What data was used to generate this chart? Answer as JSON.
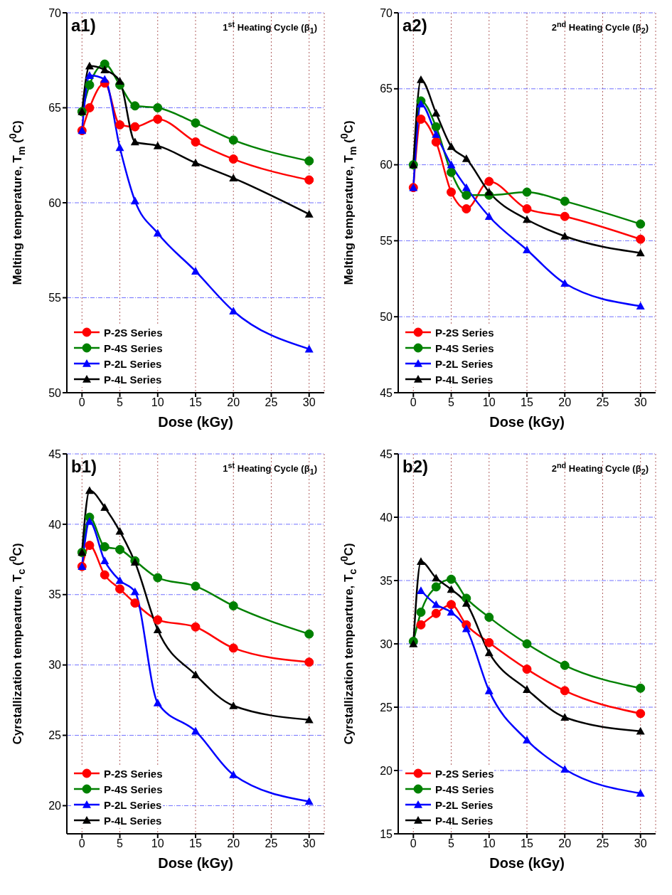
{
  "chart_data": [
    {
      "type": "line",
      "title": "a1)",
      "subtitle": "1$^{st}$ Heating Cycle (β$_{1}$)",
      "xlabel": "Dose (kGy)",
      "ylabel": "Melting temperature, T$_{m}$ ($^{0}$C)",
      "x": [
        0,
        1,
        3,
        5,
        7,
        10,
        15,
        20,
        30
      ],
      "xlim": [
        -2,
        32
      ],
      "xticks": [
        0,
        5,
        10,
        15,
        20,
        25,
        30
      ],
      "ylim": [
        50,
        70
      ],
      "yticks": [
        50,
        55,
        60,
        65,
        70
      ],
      "grid": true,
      "legend": "bottom left",
      "line_style": "solid",
      "series": [
        {
          "name": "P-2S Series",
          "color": "#ff0000",
          "marker": "circle",
          "values": [
            63.8,
            65.0,
            66.3,
            64.1,
            64.0,
            64.4,
            63.2,
            62.3,
            61.2
          ]
        },
        {
          "name": "P-4S Series",
          "color": "#008000",
          "marker": "circle",
          "values": [
            64.8,
            66.2,
            67.3,
            66.2,
            65.1,
            65.0,
            64.2,
            63.3,
            62.2
          ]
        },
        {
          "name": "P-2L Series",
          "color": "#0000ff",
          "marker": "triangle",
          "values": [
            63.8,
            66.7,
            66.5,
            62.9,
            60.1,
            58.4,
            56.4,
            54.3,
            52.3
          ]
        },
        {
          "name": "P-4L Series",
          "color": "#000000",
          "marker": "triangle",
          "values": [
            64.8,
            67.2,
            67.0,
            66.4,
            63.2,
            63.0,
            62.1,
            61.3,
            59.4
          ]
        }
      ]
    },
    {
      "type": "line",
      "title": "a2)",
      "subtitle": "2$^{nd}$ Heating Cycle (β$_{2}$)",
      "xlabel": "Dose (kGy)",
      "ylabel": "Melting temperature, T$_{m}$ ($^{0}$C)",
      "x": [
        0,
        1,
        3,
        5,
        7,
        10,
        15,
        20,
        30
      ],
      "xlim": [
        -2,
        32
      ],
      "xticks": [
        0,
        5,
        10,
        15,
        20,
        25,
        30
      ],
      "ylim": [
        45,
        70
      ],
      "yticks": [
        45,
        50,
        55,
        60,
        65,
        70
      ],
      "grid": true,
      "legend": "bottom left",
      "line_style": "solid",
      "series": [
        {
          "name": "P-2S Series",
          "color": "#ff0000",
          "marker": "circle",
          "values": [
            58.5,
            63.0,
            61.5,
            58.2,
            57.1,
            58.9,
            57.1,
            56.6,
            55.1
          ]
        },
        {
          "name": "P-4S Series",
          "color": "#008000",
          "marker": "circle",
          "values": [
            60.0,
            64.2,
            62.5,
            59.5,
            58.0,
            58.0,
            58.2,
            57.6,
            56.1
          ]
        },
        {
          "name": "P-2L Series",
          "color": "#0000ff",
          "marker": "triangle",
          "values": [
            58.5,
            64.0,
            62.0,
            60.0,
            58.5,
            56.6,
            54.4,
            52.2,
            50.7
          ]
        },
        {
          "name": "P-4L Series",
          "color": "#000000",
          "marker": "triangle",
          "values": [
            60.0,
            65.6,
            63.4,
            61.2,
            60.4,
            58.2,
            56.4,
            55.3,
            54.2
          ]
        }
      ]
    },
    {
      "type": "line",
      "title": "b1)",
      "subtitle": "1$^{st}$ Heating Cycle (β$_{1}$)",
      "xlabel": "Dose (kGy)",
      "ylabel": "Cyrstallization tempearture, T$_{c}$ ($^{0}$C)",
      "x": [
        0,
        1,
        3,
        5,
        7,
        10,
        15,
        20,
        30
      ],
      "xlim": [
        -2,
        32
      ],
      "xticks": [
        0,
        5,
        10,
        15,
        20,
        25,
        30
      ],
      "ylim": [
        18,
        45
      ],
      "yticks": [
        20,
        25,
        30,
        35,
        40,
        45
      ],
      "grid": true,
      "legend": "bottom left",
      "line_style": "solid",
      "series": [
        {
          "name": "P-2S Series",
          "color": "#ff0000",
          "marker": "circle",
          "values": [
            37.0,
            38.5,
            36.4,
            35.4,
            34.4,
            33.2,
            32.7,
            31.2,
            30.2
          ]
        },
        {
          "name": "P-4S Series",
          "color": "#008000",
          "marker": "circle",
          "values": [
            38.0,
            40.5,
            38.4,
            38.2,
            37.4,
            36.2,
            35.6,
            34.2,
            32.2
          ]
        },
        {
          "name": "P-2L Series",
          "color": "#0000ff",
          "marker": "triangle",
          "values": [
            37.0,
            40.2,
            37.4,
            36.0,
            35.2,
            27.3,
            25.3,
            22.2,
            20.3
          ]
        },
        {
          "name": "P-4L Series",
          "color": "#000000",
          "marker": "triangle",
          "values": [
            38.0,
            42.4,
            41.2,
            39.5,
            37.3,
            32.5,
            29.3,
            27.1,
            26.1
          ]
        }
      ]
    },
    {
      "type": "line",
      "title": "b2)",
      "subtitle": "2$^{nd}$ Heating Cycle (β$_{2}$)",
      "xlabel": "Dose (kGy)",
      "ylabel": "Cyrstallization tempearture, T$_{c}$ ($^{0}$C)",
      "x": [
        0,
        1,
        3,
        5,
        7,
        10,
        15,
        20,
        30
      ],
      "xlim": [
        -2,
        32
      ],
      "xticks": [
        0,
        5,
        10,
        15,
        20,
        25,
        30
      ],
      "ylim": [
        15,
        45
      ],
      "yticks": [
        15,
        20,
        25,
        30,
        35,
        40,
        45
      ],
      "grid": true,
      "legend": "bottom left",
      "line_style": "solid",
      "series": [
        {
          "name": "P-2S Series",
          "color": "#ff0000",
          "marker": "circle",
          "values": [
            null,
            31.5,
            32.4,
            33.1,
            31.5,
            30.1,
            28.0,
            26.3,
            24.5
          ]
        },
        {
          "name": "P-4S Series",
          "color": "#008000",
          "marker": "circle",
          "values": [
            30.2,
            32.5,
            34.5,
            35.1,
            33.6,
            32.1,
            30.0,
            28.3,
            26.5
          ]
        },
        {
          "name": "P-2L Series",
          "color": "#0000ff",
          "marker": "triangle",
          "values": [
            null,
            34.2,
            33.1,
            32.5,
            31.2,
            26.3,
            22.4,
            20.1,
            18.2
          ]
        },
        {
          "name": "P-4L Series",
          "color": "#000000",
          "marker": "triangle",
          "values": [
            30.0,
            36.5,
            35.2,
            34.3,
            33.2,
            29.3,
            26.4,
            24.2,
            23.1
          ]
        }
      ]
    }
  ]
}
